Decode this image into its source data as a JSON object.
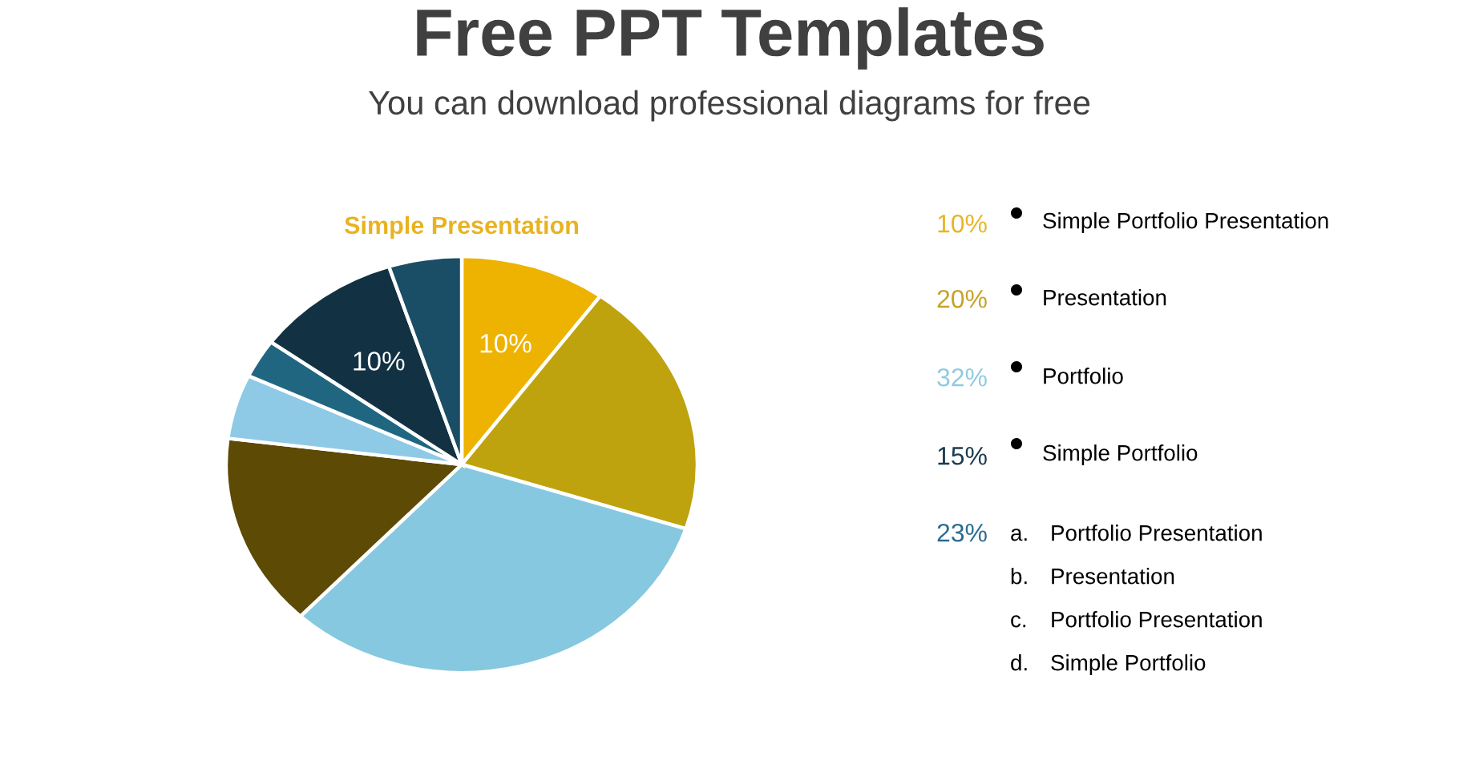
{
  "chart_data": {
    "type": "pie",
    "title": "Free PPT Templates",
    "subtitle": "You can download professional diagrams for free",
    "categories": [
      null,
      null,
      null,
      null,
      null,
      null,
      null,
      null
    ],
    "values": [
      10,
      20,
      32,
      15,
      5,
      3,
      10,
      5
    ],
    "colors": [
      "#edb300",
      "#bea30f",
      "#86c8e0",
      "#5c4a05",
      "#8ecae6",
      "#216681",
      "#123243",
      "#1a4d66"
    ],
    "value_labels": [
      "10%",
      null,
      null,
      null,
      null,
      null,
      "10%",
      null
    ],
    "annotations": [
      "Simple Presentation",
      "10%",
      "Simple Portfolio Presentation",
      "20%",
      "Presentation",
      "32%",
      "Portfolio",
      "15%",
      "Simple Portfolio",
      "23%",
      "a.",
      "Portfolio Presentation",
      "b.",
      "Presentation",
      "c.",
      "Portfolio Presentation",
      "d.",
      "Simple Portfolio"
    ]
  }
}
